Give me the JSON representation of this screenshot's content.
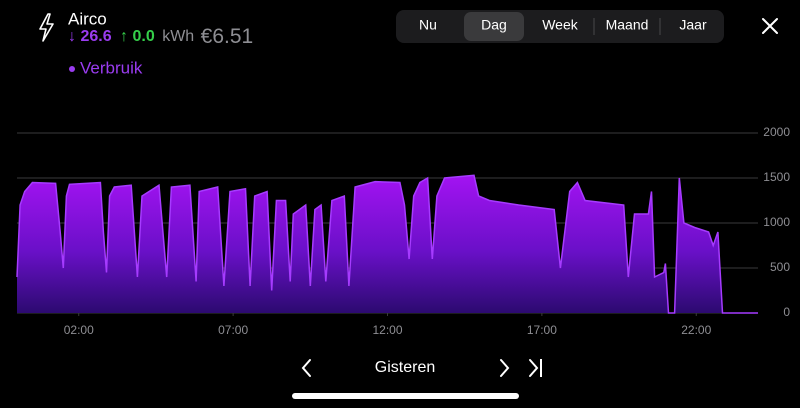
{
  "header": {
    "title": "Airco",
    "usage": "↓ 26.6",
    "return": "↑ 0.0",
    "unit": "kWh",
    "cost": "€6.51"
  },
  "tabs": [
    "Nu",
    "Dag",
    "Week",
    "Maand",
    "Jaar"
  ],
  "selected_tab": "Dag",
  "nav": {
    "label": "Gisteren"
  },
  "chart_data": {
    "type": "area",
    "x": [
      0.0,
      0.1,
      0.25,
      0.5,
      1.25,
      1.4,
      1.5,
      1.6,
      1.7,
      2.7,
      2.8,
      2.9,
      3.0,
      3.15,
      3.7,
      3.9,
      4.05,
      4.6,
      4.85,
      5.0,
      5.6,
      5.8,
      5.9,
      6.5,
      6.7,
      6.9,
      7.4,
      7.55,
      7.7,
      8.1,
      8.25,
      8.4,
      8.7,
      8.85,
      8.95,
      9.35,
      9.5,
      9.65,
      9.85,
      10.0,
      10.2,
      10.6,
      10.75,
      10.95,
      11.6,
      12.4,
      12.55,
      12.7,
      12.85,
      13.05,
      13.3,
      13.45,
      13.6,
      13.85,
      14.8,
      14.95,
      15.3,
      16.25,
      17.4,
      17.6,
      17.9,
      18.15,
      18.4,
      19.65,
      19.8,
      20.0,
      20.45,
      20.55,
      20.65,
      20.95,
      21.0,
      21.1,
      21.3,
      21.45,
      21.6,
      21.95,
      22.4,
      22.55,
      22.7,
      22.85,
      24.0
    ],
    "series": [
      {
        "name": "Verbruik",
        "color": "#a63bff",
        "values": [
          400,
          1200,
          1350,
          1450,
          1440,
          900,
          500,
          1300,
          1430,
          1450,
          900,
          450,
          1300,
          1400,
          1420,
          400,
          1300,
          1420,
          400,
          1400,
          1420,
          350,
          1350,
          1400,
          300,
          1350,
          1380,
          300,
          1300,
          1350,
          250,
          1250,
          1250,
          350,
          1100,
          1200,
          300,
          1150,
          1200,
          350,
          1250,
          1300,
          300,
          1400,
          1460,
          1450,
          1200,
          600,
          1300,
          1450,
          1500,
          600,
          1300,
          1500,
          1530,
          1300,
          1250,
          1200,
          1150,
          500,
          1350,
          1450,
          1250,
          1200,
          400,
          1100,
          1100,
          1350,
          400,
          450,
          550,
          0,
          0,
          1500,
          1000,
          950,
          900,
          750,
          900,
          0,
          0
        ]
      }
    ],
    "xlim": [
      0,
      24
    ],
    "xticks": [
      {
        "value": 2,
        "label": "02:00"
      },
      {
        "value": 7,
        "label": "07:00"
      },
      {
        "value": 12,
        "label": "12:00"
      },
      {
        "value": 17,
        "label": "17:00"
      },
      {
        "value": 22,
        "label": "22:00"
      }
    ],
    "ylim": [
      0,
      2000
    ],
    "yticks": [
      0,
      500,
      1000,
      1500,
      2000
    ],
    "grid": true
  }
}
